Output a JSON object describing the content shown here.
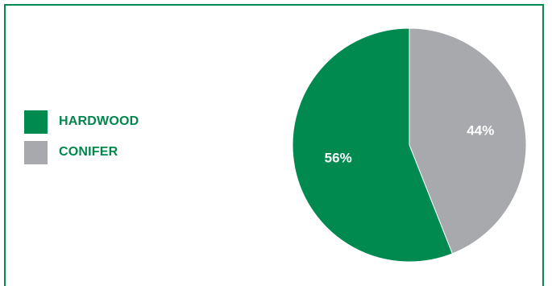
{
  "chart_data": {
    "type": "pie",
    "title": "",
    "slices": [
      {
        "label": "HARDWOOD",
        "value": 56,
        "display": "56%",
        "color": "#008a4f"
      },
      {
        "label": "CONIFER",
        "value": 44,
        "display": "44%",
        "color": "#a7a9ac"
      }
    ],
    "legend_position": "left",
    "start_angle_deg": 0,
    "direction": "clockwise-second-slice-first"
  },
  "colors": {
    "frame_border": "#008a4f",
    "legend_text": "#00874c",
    "slice_label_text": "#ffffff"
  }
}
